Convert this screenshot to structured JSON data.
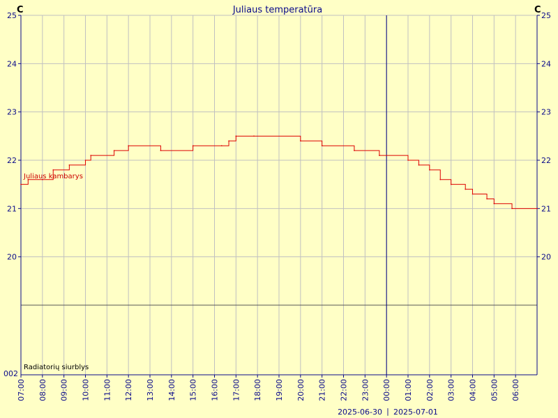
{
  "chart_data": {
    "type": "line",
    "title": "Juliaus temperatūra",
    "unit_left": "C",
    "unit_right": "C",
    "colors": {
      "background": "#ffffc6",
      "series": "#dd0000",
      "grid": "#c0c0c0",
      "axis": "#0a0a8a",
      "day_divider": "#000080"
    },
    "y_range": [
      19,
      25
    ],
    "y_ticks": [
      20,
      21,
      22,
      23,
      24,
      25
    ],
    "x_ticks": [
      "07:00",
      "08:00",
      "09:00",
      "10:00",
      "11:00",
      "12:00",
      "13:00",
      "14:00",
      "15:00",
      "16:00",
      "17:00",
      "18:00",
      "19:00",
      "20:00",
      "21:00",
      "22:00",
      "23:00",
      "00:00",
      "01:00",
      "02:00",
      "03:00",
      "04:00",
      "05:00",
      "06:00"
    ],
    "x_range": [
      "2025-06-30 07:00",
      "2025-07-01 07:00"
    ],
    "day_boundary": "2025-07-01 00:00",
    "date_labels": [
      "2025-06-30",
      "2025-07-01"
    ],
    "series": [
      {
        "name": "Juliaus kambarys",
        "points": [
          [
            "2025-06-30 07:00",
            21.5
          ],
          [
            "2025-06-30 07:20",
            21.6
          ],
          [
            "2025-06-30 08:00",
            21.6
          ],
          [
            "2025-06-30 08:30",
            21.8
          ],
          [
            "2025-06-30 09:15",
            21.9
          ],
          [
            "2025-06-30 10:00",
            22.0
          ],
          [
            "2025-06-30 10:15",
            22.1
          ],
          [
            "2025-06-30 11:20",
            22.2
          ],
          [
            "2025-06-30 12:00",
            22.3
          ],
          [
            "2025-06-30 13:30",
            22.2
          ],
          [
            "2025-06-30 15:00",
            22.3
          ],
          [
            "2025-06-30 16:20",
            22.3
          ],
          [
            "2025-06-30 16:40",
            22.4
          ],
          [
            "2025-06-30 17:00",
            22.5
          ],
          [
            "2025-06-30 17:50",
            22.5
          ],
          [
            "2025-06-30 20:00",
            22.4
          ],
          [
            "2025-06-30 21:00",
            22.3
          ],
          [
            "2025-06-30 22:30",
            22.2
          ],
          [
            "2025-06-30 23:40",
            22.1
          ],
          [
            "2025-07-01 01:00",
            22.0
          ],
          [
            "2025-07-01 01:30",
            21.9
          ],
          [
            "2025-07-01 02:00",
            21.8
          ],
          [
            "2025-07-01 02:30",
            21.6
          ],
          [
            "2025-07-01 03:00",
            21.5
          ],
          [
            "2025-07-01 03:40",
            21.4
          ],
          [
            "2025-07-01 04:00",
            21.3
          ],
          [
            "2025-07-01 04:40",
            21.2
          ],
          [
            "2025-07-01 05:00",
            21.1
          ],
          [
            "2025-07-01 05:50",
            21.0
          ],
          [
            "2025-07-01 07:00",
            21.0
          ]
        ]
      }
    ],
    "series_label": "Juliaus kambarys",
    "pump_label": "Radiatorių siurblys",
    "pump_axis_label": "002"
  }
}
